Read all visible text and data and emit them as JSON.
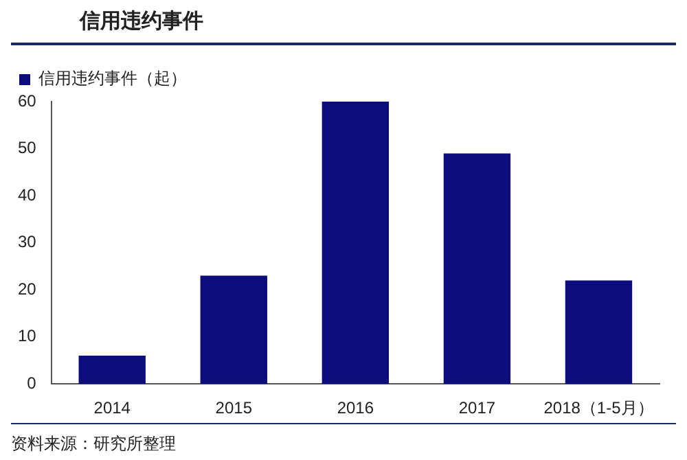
{
  "chart_data": {
    "type": "bar",
    "title": "信用违约事件",
    "categories": [
      "2014",
      "2015",
      "2016",
      "2017",
      "2018（1-5月）"
    ],
    "series": [
      {
        "name": "信用违约事件（起）",
        "color": "#0c0c7c",
        "values": [
          6,
          23,
          60,
          49,
          22
        ]
      }
    ],
    "ylim": [
      0,
      60
    ],
    "yticks": [
      0,
      10,
      20,
      30,
      40,
      50,
      60
    ],
    "grid": false,
    "legend": "top left",
    "annotations": [
      "资料来源：研究所整理"
    ]
  }
}
